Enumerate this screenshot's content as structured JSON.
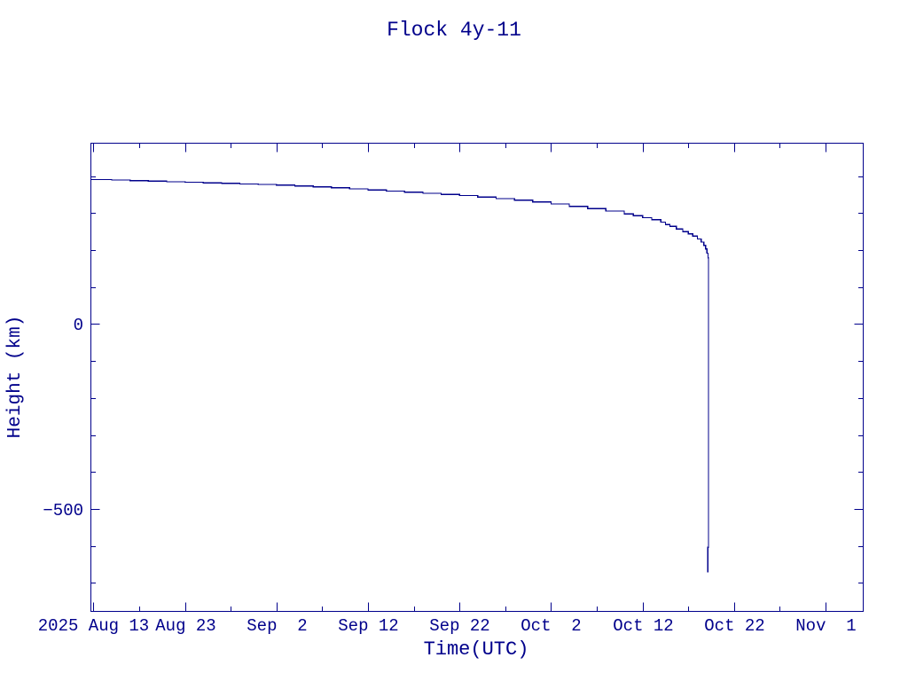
{
  "window": {
    "background": "#FFFFFF"
  },
  "colors": {
    "ink": "#00008B",
    "background": "#FFFFFF"
  },
  "chart_data": {
    "type": "line",
    "title": "Flock 4y-11",
    "xlabel": "Time(UTC)",
    "ylabel": "Height (km)",
    "grid": false,
    "legend": false,
    "line_style": "step-after",
    "x_axis": {
      "unit": "days since 2025 Aug 13 00:00 UTC",
      "lim": [
        -0.28,
        84.12
      ],
      "major_ticks": [
        {
          "t": 0,
          "label": "2025 Aug 13"
        },
        {
          "t": 10,
          "label": "Aug 23"
        },
        {
          "t": 20,
          "label": "Sep  2"
        },
        {
          "t": 30,
          "label": "Sep 12"
        },
        {
          "t": 40,
          "label": "Sep 22"
        },
        {
          "t": 50,
          "label": "Oct  2"
        },
        {
          "t": 60,
          "label": "Oct 12"
        },
        {
          "t": 70,
          "label": "Oct 22"
        },
        {
          "t": 80,
          "label": "Nov  1"
        }
      ],
      "minor_ticks": [
        5,
        15,
        25,
        35,
        45,
        55,
        65,
        75
      ]
    },
    "y_axis": {
      "unit": "km",
      "lim": [
        -777,
        489
      ],
      "major_ticks": [
        {
          "v": 0,
          "label": "0"
        },
        {
          "v": -500,
          "label": "−500"
        }
      ],
      "minor_ticks": [
        400,
        300,
        200,
        100,
        -100,
        -200,
        -300,
        -400,
        -600,
        -700
      ]
    },
    "series": [
      {
        "name": "Flock 4y-11",
        "color": "#00008B",
        "points": [
          [
            -0.28,
            391
          ],
          [
            2,
            389.5
          ],
          [
            4,
            388
          ],
          [
            6,
            386.5
          ],
          [
            8,
            385
          ],
          [
            10,
            383.5
          ],
          [
            12,
            382
          ],
          [
            14,
            380.5
          ],
          [
            16,
            379
          ],
          [
            18,
            377.5
          ],
          [
            20,
            375.5
          ],
          [
            22,
            373.5
          ],
          [
            24,
            371
          ],
          [
            26,
            368.5
          ],
          [
            28,
            365.5
          ],
          [
            30,
            362.5
          ],
          [
            32,
            359.5
          ],
          [
            34,
            356.5
          ],
          [
            36,
            353.5
          ],
          [
            38,
            350.5
          ],
          [
            40,
            347.5
          ],
          [
            42,
            343.5
          ],
          [
            44,
            339.5
          ],
          [
            46,
            335
          ],
          [
            48,
            330.5
          ],
          [
            50,
            325
          ],
          [
            52,
            318.5
          ],
          [
            54,
            312
          ],
          [
            56,
            305.5
          ],
          [
            58,
            298
          ],
          [
            59,
            293
          ],
          [
            60,
            287.5
          ],
          [
            61,
            282
          ],
          [
            62,
            275.5
          ],
          [
            62.5,
            269
          ],
          [
            63,
            264
          ],
          [
            63.7,
            257
          ],
          [
            64.4,
            250
          ],
          [
            65,
            244
          ],
          [
            65.5,
            238
          ],
          [
            66,
            230
          ],
          [
            66.4,
            222
          ],
          [
            66.7,
            213
          ],
          [
            66.9,
            203
          ],
          [
            67.05,
            192
          ],
          [
            67.15,
            179
          ],
          [
            67.2,
            163
          ],
          [
            67.2,
            -604
          ],
          [
            67.13,
            -604
          ],
          [
            67.13,
            -672
          ]
        ]
      }
    ]
  }
}
